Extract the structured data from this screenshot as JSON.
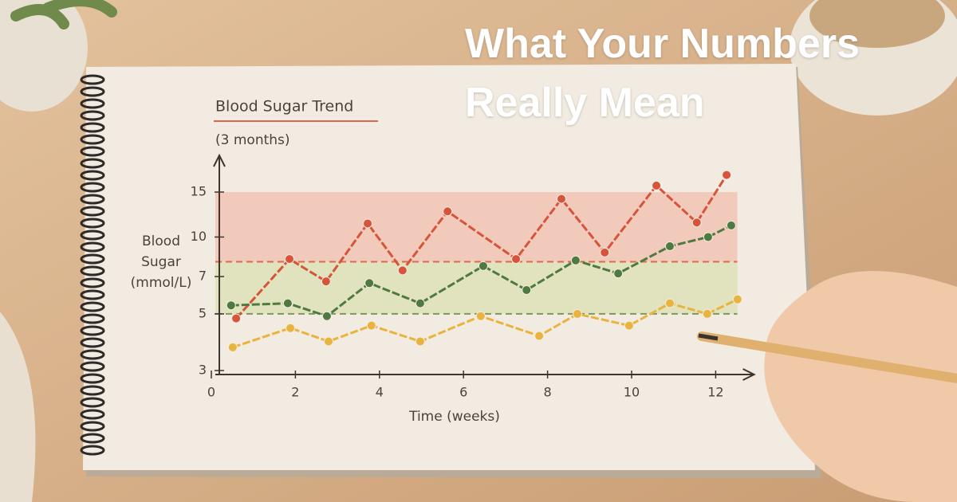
{
  "headline": "What Your Numbers Really Mean",
  "chart_data": {
    "type": "line",
    "title": "Blood Sugar Trend",
    "subtitle": "(3 months)",
    "y_label": "Blood Sugar (mmol/L)",
    "x_label": "Time (weeks)",
    "log_y": true,
    "grid": false,
    "xlim": [
      0,
      12.8
    ],
    "xticks": [
      0,
      2,
      4,
      6,
      8,
      10,
      12
    ],
    "ylim": [
      3,
      20
    ],
    "yticks": [
      3,
      5,
      7,
      10,
      15
    ],
    "bands": [
      {
        "ymin": 8,
        "ymax": 15,
        "color": "#f3b9a6"
      },
      {
        "ymin": 5,
        "ymax": 8,
        "color": "#d9deaa"
      }
    ],
    "threshold_lines": [
      {
        "value": 8,
        "color": "#dc6a4c"
      },
      {
        "value": 5,
        "color": "#7d9a5c"
      }
    ],
    "series": [
      {
        "color": "#d6543a",
        "x": [
          0.59,
          1.86,
          2.73,
          3.72,
          4.55,
          5.62,
          7.25,
          8.33,
          9.36,
          10.59,
          11.55,
          12.26
        ],
        "values": [
          4.8,
          8.2,
          6.7,
          11.3,
          7.4,
          12.6,
          8.2,
          14.1,
          8.7,
          15.9,
          11.4,
          17.5
        ]
      },
      {
        "color": "#4f7a3f",
        "x": [
          0.47,
          1.82,
          2.75,
          3.76,
          4.97,
          6.47,
          7.5,
          8.67,
          9.68,
          10.91,
          11.82,
          12.37
        ],
        "values": [
          5.4,
          5.5,
          4.9,
          6.6,
          5.5,
          7.7,
          6.2,
          8.1,
          7.2,
          9.2,
          10.0,
          11.1
        ]
      },
      {
        "color": "#e9b43e",
        "x": [
          0.51,
          1.88,
          2.79,
          3.81,
          4.97,
          6.41,
          7.8,
          8.71,
          9.94,
          10.91,
          11.8,
          12.52
        ],
        "values": [
          3.7,
          4.4,
          3.9,
          4.5,
          3.9,
          4.9,
          4.1,
          5.0,
          4.5,
          5.5,
          5.0,
          5.7
        ]
      }
    ]
  }
}
